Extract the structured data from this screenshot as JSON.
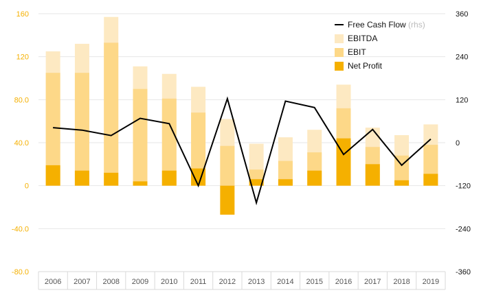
{
  "chart_data": {
    "type": "bar",
    "categories": [
      "2006",
      "2007",
      "2008",
      "2009",
      "2010",
      "2011",
      "2012",
      "2013",
      "2014",
      "2015",
      "2016",
      "2017",
      "2018",
      "2019"
    ],
    "series": [
      {
        "name": "EBITDA",
        "kind": "bar",
        "axis": "left",
        "color": "#fde9c2",
        "values": [
          125,
          132,
          157,
          111,
          104,
          92,
          62,
          39,
          45,
          52,
          94,
          54,
          47,
          57
        ]
      },
      {
        "name": "EBIT",
        "kind": "bar",
        "axis": "left",
        "color": "#fdd888",
        "values": [
          105,
          105,
          133,
          90,
          81,
          68,
          37,
          15,
          23,
          31,
          72,
          36,
          28,
          38
        ]
      },
      {
        "name": "Net Profit",
        "kind": "bar",
        "axis": "left",
        "color": "#f5b000",
        "values": [
          19,
          14,
          12,
          4,
          14,
          16,
          -27,
          6,
          6,
          14,
          44,
          20,
          5,
          11
        ]
      },
      {
        "name": "Free Cash Flow",
        "suffix": "(rhs)",
        "kind": "line",
        "axis": "right",
        "color": "#000000",
        "values": [
          42,
          35,
          20,
          68,
          53,
          -120,
          123,
          -168,
          116,
          98,
          -33,
          37,
          -63,
          10
        ]
      }
    ],
    "left_axis": {
      "min": -80,
      "max": 160,
      "ticks": [
        160,
        120,
        80,
        40,
        0,
        -40,
        -80
      ],
      "tick_labels": [
        "160",
        "120",
        "80.0",
        "40.0",
        "0",
        "-40.0",
        "-80.0"
      ],
      "color": "#f5b000"
    },
    "right_axis": {
      "min": -360,
      "max": 360,
      "ticks": [
        360,
        240,
        120,
        0,
        -120,
        -240,
        -360
      ],
      "tick_labels": [
        "360",
        "240",
        "120",
        "0",
        "-120",
        "-240",
        "-360"
      ],
      "color": "#111111"
    },
    "grid": true,
    "legend_position": "top-right",
    "legend_order": [
      "Free Cash Flow",
      "EBITDA",
      "EBIT",
      "Net Profit"
    ]
  }
}
